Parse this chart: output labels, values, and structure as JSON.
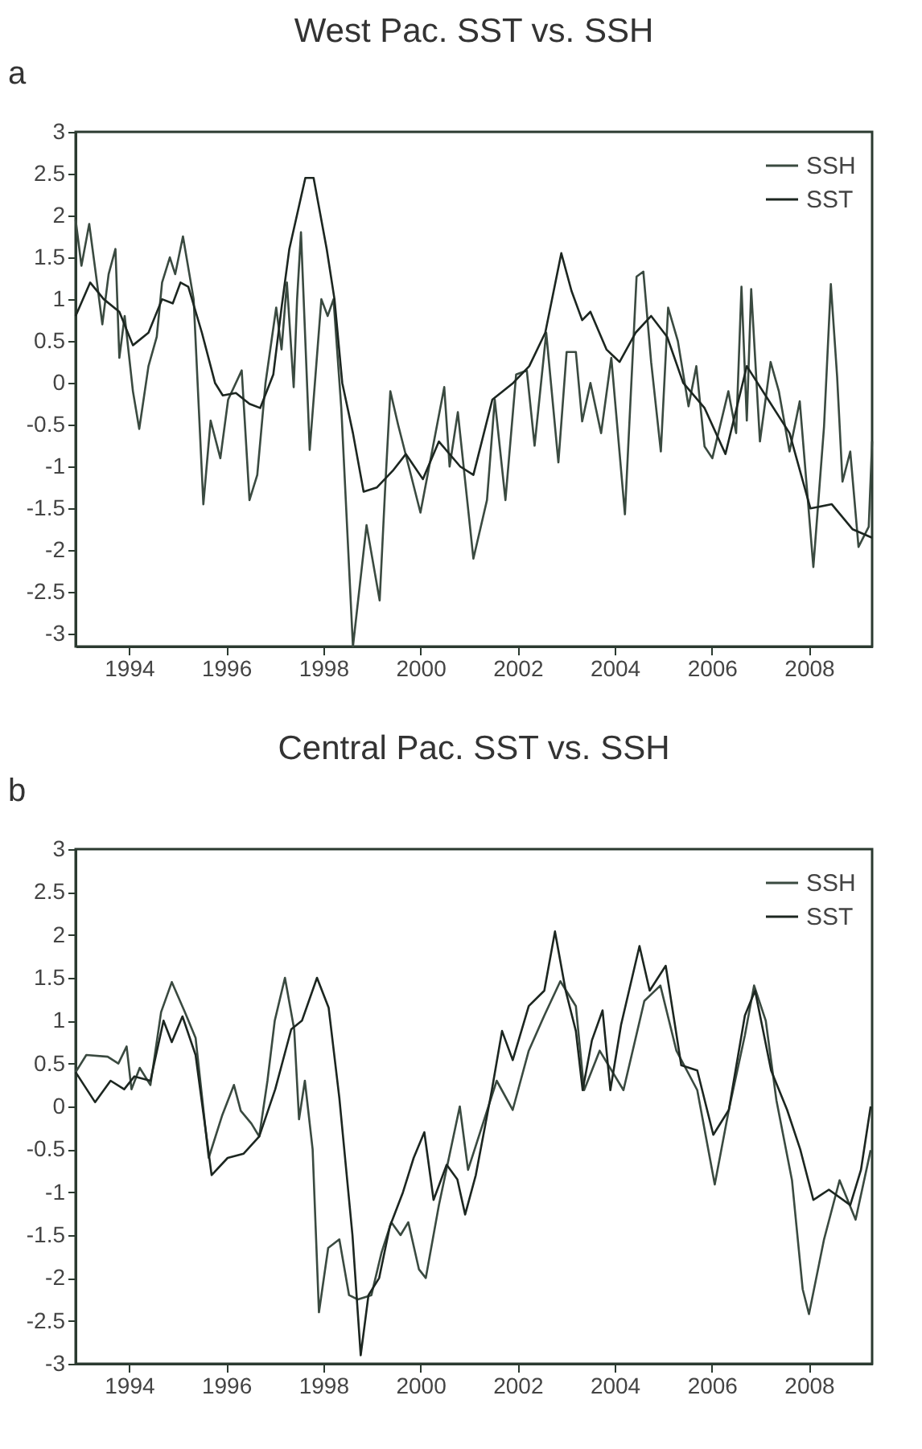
{
  "chart_data": [
    {
      "type": "line",
      "title": "West Pac. SST vs. SSH",
      "annotations": [
        "a"
      ],
      "xlim": [
        1992.9,
        2009.3
      ],
      "xticks": [
        1994,
        1996,
        1998,
        2000,
        2002,
        2004,
        2006,
        2008
      ],
      "ylim": [
        -3.15,
        3
      ],
      "yticks": [
        -3,
        -2.5,
        -2,
        -1.5,
        -1,
        -0.5,
        0,
        0.5,
        1,
        1.5,
        2,
        2.5,
        3
      ],
      "grid": false,
      "legend": "top right",
      "series": [
        {
          "name": "SSH",
          "color": "#3a4a40",
          "x": [
            1992.9,
            1993.02,
            1993.18,
            1993.34,
            1993.45,
            1993.58,
            1993.72,
            1993.8,
            1993.91,
            1994.08,
            1994.21,
            1994.4,
            1994.57,
            1994.68,
            1994.84,
            1994.95,
            1995.11,
            1995.33,
            1995.53,
            1995.68,
            1995.88,
            1996.04,
            1996.32,
            1996.48,
            1996.64,
            1996.81,
            1997.03,
            1997.14,
            1997.25,
            1997.39,
            1997.46,
            1997.54,
            1997.72,
            1997.96,
            1998.09,
            1998.21,
            1998.37,
            1998.61,
            1998.89,
            1999.16,
            1999.27,
            1999.38,
            1999.54,
            1999.76,
            2000.0,
            2000.49,
            2000.6,
            2000.77,
            2001.09,
            2001.37,
            2001.53,
            2001.75,
            2001.97,
            2002.19,
            2002.35,
            2002.59,
            2002.84,
            2003.01,
            2003.2,
            2003.33,
            2003.5,
            2003.72,
            2003.93,
            2004.21,
            2004.45,
            2004.59,
            2004.75,
            2004.95,
            2005.1,
            2005.3,
            2005.52,
            2005.68,
            2005.85,
            2006.01,
            2006.34,
            2006.5,
            2006.61,
            2006.72,
            2006.81,
            2006.99,
            2007.21,
            2007.38,
            2007.6,
            2007.81,
            2008.09,
            2008.31,
            2008.45,
            2008.58,
            2008.69,
            2008.85,
            2009.02,
            2009.23,
            2009.3
          ],
          "values": [
            1.95,
            1.4,
            1.9,
            1.2,
            0.7,
            1.3,
            1.6,
            0.3,
            0.8,
            -0.1,
            -0.55,
            0.2,
            0.55,
            1.2,
            1.5,
            1.3,
            1.75,
            1.0,
            -1.45,
            -0.45,
            -0.9,
            -0.2,
            0.15,
            -1.4,
            -1.1,
            0.0,
            0.9,
            0.4,
            1.2,
            -0.05,
            1.0,
            1.8,
            -0.8,
            1.0,
            0.8,
            1.0,
            -0.3,
            -3.15,
            -1.7,
            -2.6,
            -1.3,
            -0.1,
            -0.5,
            -1.0,
            -1.55,
            -0.05,
            -1.0,
            -0.35,
            -2.1,
            -1.4,
            -0.2,
            -1.4,
            0.1,
            0.15,
            -0.75,
            0.6,
            -0.95,
            0.37,
            0.37,
            -0.46,
            0.0,
            -0.6,
            0.3,
            -1.57,
            1.27,
            1.33,
            0.25,
            -0.82,
            0.9,
            0.5,
            -0.28,
            0.2,
            -0.76,
            -0.9,
            -0.1,
            -0.6,
            1.15,
            -0.45,
            1.12,
            -0.7,
            0.25,
            -0.1,
            -0.82,
            -0.22,
            -2.2,
            -0.52,
            1.18,
            0.07,
            -1.18,
            -0.82,
            -1.96,
            -1.72,
            -0.7
          ]
        },
        {
          "name": "SST",
          "color": "#1c2620",
          "x": [
            1992.9,
            1993.2,
            1993.48,
            1993.8,
            1994.08,
            1994.4,
            1994.68,
            1994.9,
            1995.06,
            1995.22,
            1995.5,
            1995.77,
            1995.93,
            1996.2,
            1996.48,
            1996.7,
            1996.97,
            1997.14,
            1997.3,
            1997.63,
            1997.8,
            1998.07,
            1998.23,
            1998.39,
            1998.61,
            1998.83,
            1999.1,
            1999.43,
            1999.7,
            2000.05,
            2000.38,
            2000.82,
            2001.09,
            2001.48,
            2001.91,
            2002.24,
            2002.57,
            2002.9,
            2003.11,
            2003.33,
            2003.5,
            2003.83,
            2004.1,
            2004.43,
            2004.75,
            2005.08,
            2005.41,
            2005.85,
            2006.28,
            2006.72,
            2007.16,
            2007.6,
            2008.03,
            2008.47,
            2008.9,
            2009.3
          ],
          "values": [
            0.8,
            1.2,
            1.0,
            0.85,
            0.45,
            0.6,
            1.0,
            0.95,
            1.2,
            1.15,
            0.6,
            0.0,
            -0.15,
            -0.12,
            -0.25,
            -0.3,
            0.1,
            0.9,
            1.6,
            2.45,
            2.45,
            1.6,
            1.0,
            0.0,
            -0.6,
            -1.3,
            -1.25,
            -1.05,
            -0.85,
            -1.15,
            -0.7,
            -1.0,
            -1.1,
            -0.2,
            0.0,
            0.2,
            0.6,
            1.55,
            1.1,
            0.75,
            0.85,
            0.4,
            0.25,
            0.6,
            0.8,
            0.55,
            0.0,
            -0.3,
            -0.85,
            0.2,
            -0.2,
            -0.6,
            -1.5,
            -1.45,
            -1.75,
            -1.85
          ]
        }
      ]
    },
    {
      "type": "line",
      "title": "Central Pac. SST vs. SSH",
      "annotations": [
        "b"
      ],
      "xlim": [
        1992.9,
        2009.3
      ],
      "xticks": [
        1994,
        1996,
        1998,
        2000,
        2002,
        2004,
        2006,
        2008
      ],
      "ylim": [
        -3,
        3
      ],
      "yticks": [
        -3,
        -2.5,
        -2,
        -1.5,
        -1,
        -0.5,
        0,
        0.5,
        1,
        1.5,
        2,
        2.5,
        3
      ],
      "grid": false,
      "legend": "top right",
      "series": [
        {
          "name": "SSH",
          "color": "#3a4a40",
          "x": [
            1992.9,
            1993.12,
            1993.56,
            1993.78,
            1993.95,
            1994.05,
            1994.22,
            1994.44,
            1994.66,
            1994.88,
            1995.15,
            1995.37,
            1995.64,
            1995.92,
            1996.16,
            1996.3,
            1996.52,
            1996.68,
            1996.85,
            1997.0,
            1997.21,
            1997.4,
            1997.5,
            1997.62,
            1997.78,
            1997.91,
            1998.1,
            1998.33,
            1998.53,
            1998.71,
            1998.99,
            1999.2,
            1999.4,
            1999.59,
            1999.75,
            1999.97,
            2000.11,
            2000.38,
            2000.81,
            2000.98,
            2001.57,
            2001.9,
            2002.23,
            2002.55,
            2002.88,
            2003.2,
            2003.37,
            2003.69,
            2004.18,
            2004.61,
            2004.94,
            2005.27,
            2005.7,
            2006.06,
            2006.35,
            2006.68,
            2006.87,
            2007.11,
            2007.33,
            2007.65,
            2007.87,
            2008.0,
            2008.31,
            2008.63,
            2008.96,
            2009.27
          ],
          "values": [
            0.4,
            0.6,
            0.58,
            0.5,
            0.7,
            0.2,
            0.45,
            0.25,
            1.1,
            1.45,
            1.1,
            0.8,
            -0.6,
            -0.1,
            0.25,
            -0.05,
            -0.2,
            -0.35,
            0.3,
            1.0,
            1.5,
            0.9,
            -0.15,
            0.3,
            -0.5,
            -2.4,
            -1.65,
            -1.55,
            -2.2,
            -2.25,
            -2.2,
            -1.7,
            -1.35,
            -1.5,
            -1.35,
            -1.9,
            -2.0,
            -1.15,
            0.0,
            -0.74,
            0.3,
            -0.04,
            0.65,
            1.06,
            1.46,
            1.17,
            0.19,
            0.65,
            0.19,
            1.23,
            1.41,
            0.65,
            0.19,
            -0.91,
            -0.04,
            0.83,
            1.41,
            1.0,
            0.07,
            -0.86,
            -2.13,
            -2.42,
            -1.55,
            -0.86,
            -1.32,
            -0.51
          ]
        },
        {
          "name": "SST",
          "color": "#1c2620",
          "x": [
            1992.9,
            1993.3,
            1993.62,
            1993.9,
            1994.11,
            1994.44,
            1994.71,
            1994.88,
            1995.1,
            1995.37,
            1995.7,
            1996.03,
            1996.36,
            1996.68,
            1997.01,
            1997.34,
            1997.56,
            1997.87,
            1998.11,
            1998.33,
            1998.6,
            1998.77,
            1998.93,
            1999.15,
            1999.37,
            1999.64,
            1999.86,
            2000.08,
            2000.27,
            2000.54,
            2000.76,
            2000.92,
            2001.14,
            2001.47,
            2001.68,
            2001.9,
            2002.23,
            2002.55,
            2002.77,
            2002.99,
            2003.2,
            2003.34,
            2003.53,
            2003.75,
            2003.91,
            2004.13,
            2004.51,
            2004.72,
            2005.05,
            2005.37,
            2005.7,
            2006.03,
            2006.35,
            2006.68,
            2006.89,
            2007.22,
            2007.55,
            2007.82,
            2008.09,
            2008.41,
            2008.85,
            2009.07,
            2009.27
          ],
          "values": [
            0.4,
            0.05,
            0.3,
            0.2,
            0.35,
            0.3,
            1.0,
            0.75,
            1.05,
            0.6,
            -0.8,
            -0.6,
            -0.55,
            -0.35,
            0.2,
            0.9,
            1.0,
            1.5,
            1.15,
            0.1,
            -1.5,
            -2.9,
            -2.2,
            -2.0,
            -1.4,
            -1.0,
            -0.6,
            -0.3,
            -1.09,
            -0.68,
            -0.85,
            -1.26,
            -0.8,
            0.19,
            0.88,
            0.54,
            1.17,
            1.35,
            2.04,
            1.35,
            0.88,
            0.19,
            0.77,
            1.12,
            0.19,
            0.95,
            1.87,
            1.35,
            1.64,
            0.48,
            0.42,
            -0.33,
            -0.04,
            1.06,
            1.35,
            0.42,
            -0.04,
            -0.5,
            -1.09,
            -0.97,
            -1.15,
            -0.74,
            0.0
          ]
        }
      ]
    }
  ]
}
